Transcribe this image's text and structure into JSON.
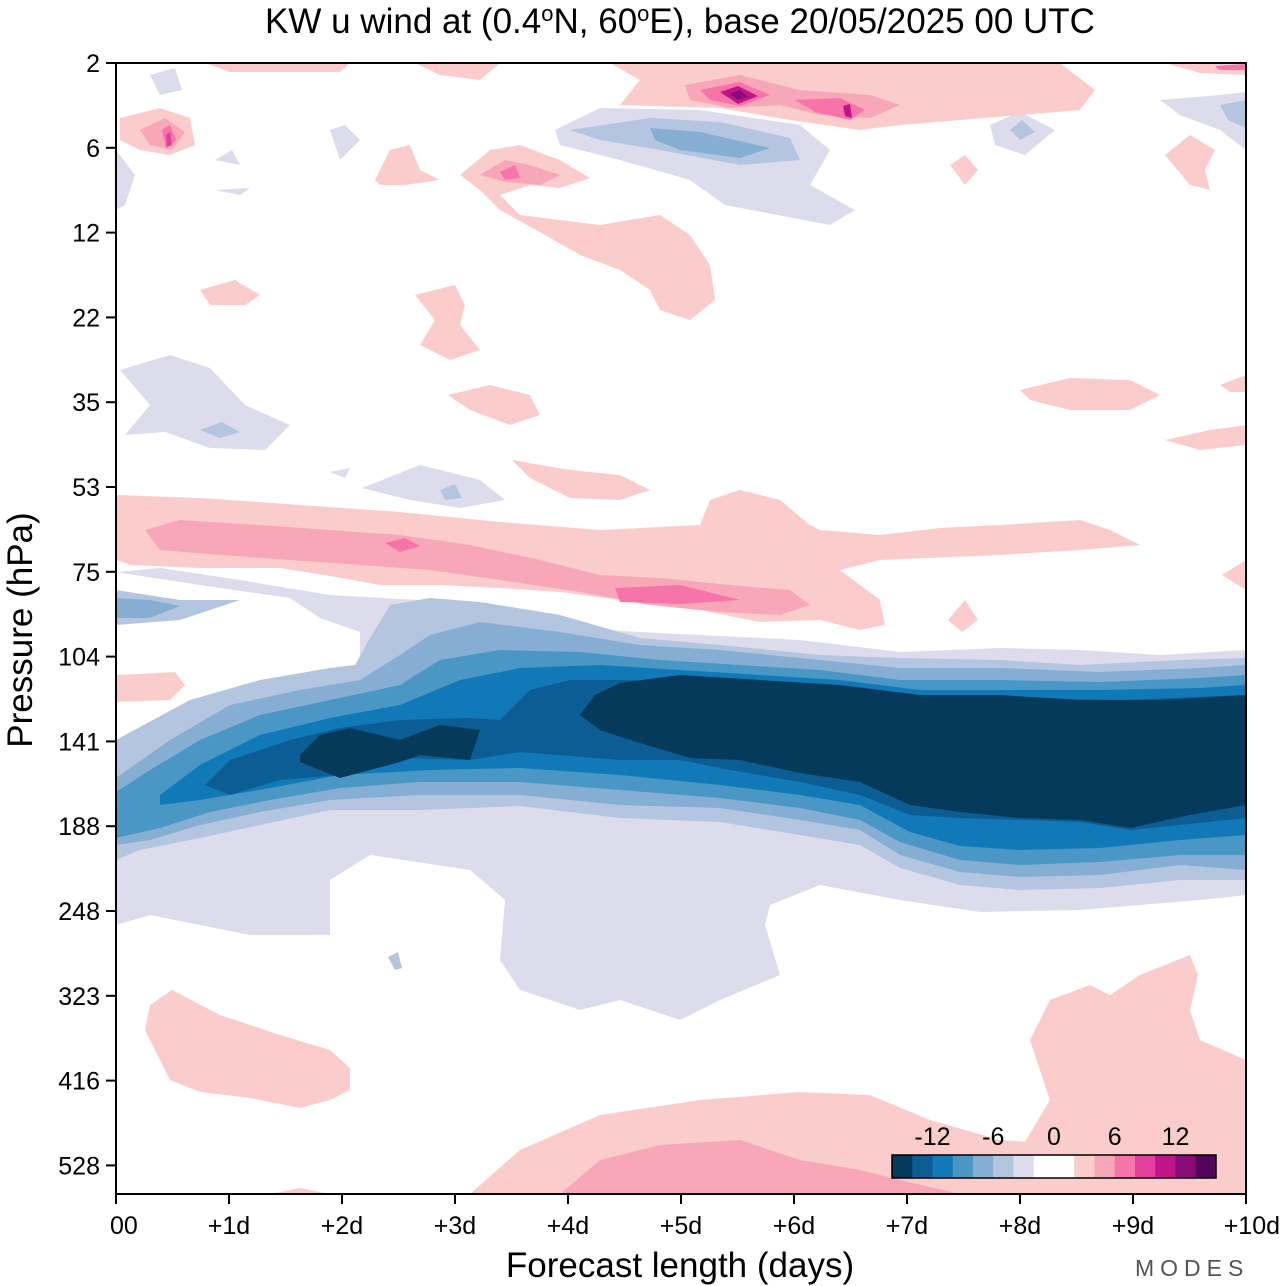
{
  "chart_data": {
    "type": "heatmap",
    "title": {
      "prefix": "KW u wind at (0.4",
      "lat": "N, 60",
      "lon": "E),  base 20/05/2025  00 UTC",
      "degree_symbol": "o"
    },
    "xlabel": "Forecast length (days)",
    "ylabel": "Pressure (hPa)",
    "x_ticks": [
      "00",
      "+1d",
      "+2d",
      "+3d",
      "+4d",
      "+5d",
      "+6d",
      "+7d",
      "+8d",
      "+9d",
      "+10d"
    ],
    "y_ticks": [
      "2",
      "6",
      "12",
      "22",
      "35",
      "53",
      "75",
      "104",
      "141",
      "188",
      "248",
      "323",
      "416",
      "528"
    ],
    "xlim": [
      0,
      10
    ],
    "y_scale": "log-pressure levels",
    "colorbar": {
      "placement": "bottom-right",
      "tick_labels": [
        "-12",
        "-6",
        "0",
        "6",
        "12"
      ],
      "colors": [
        "#063a5a",
        "#0c5d93",
        "#1179b8",
        "#4a97c6",
        "#86aed3",
        "#b4c5e0",
        "#dcdcec",
        "#ffffff",
        "#ffffff",
        "#fbcccc",
        "#f8a7b8",
        "#f674a8",
        "#e33f9e",
        "#c01589",
        "#8a0b7a",
        "#53055b"
      ]
    },
    "features": [
      {
        "name": "negative jet core",
        "sign": "negative",
        "x_range": [
          4,
          10
        ],
        "pressure_range": [
          104,
          188
        ],
        "max_magnitude": "< -12"
      },
      {
        "name": "positive band",
        "sign": "positive",
        "x_range": [
          0,
          6.5
        ],
        "pressure_range": [
          53,
          90
        ],
        "max_magnitude": "about 9"
      },
      {
        "name": "upper-level positive",
        "sign": "positive",
        "x_range": [
          4.5,
          7.5
        ],
        "pressure_range": [
          2,
          6
        ],
        "max_magnitude": "about 12"
      }
    ]
  },
  "brand": "MODES"
}
